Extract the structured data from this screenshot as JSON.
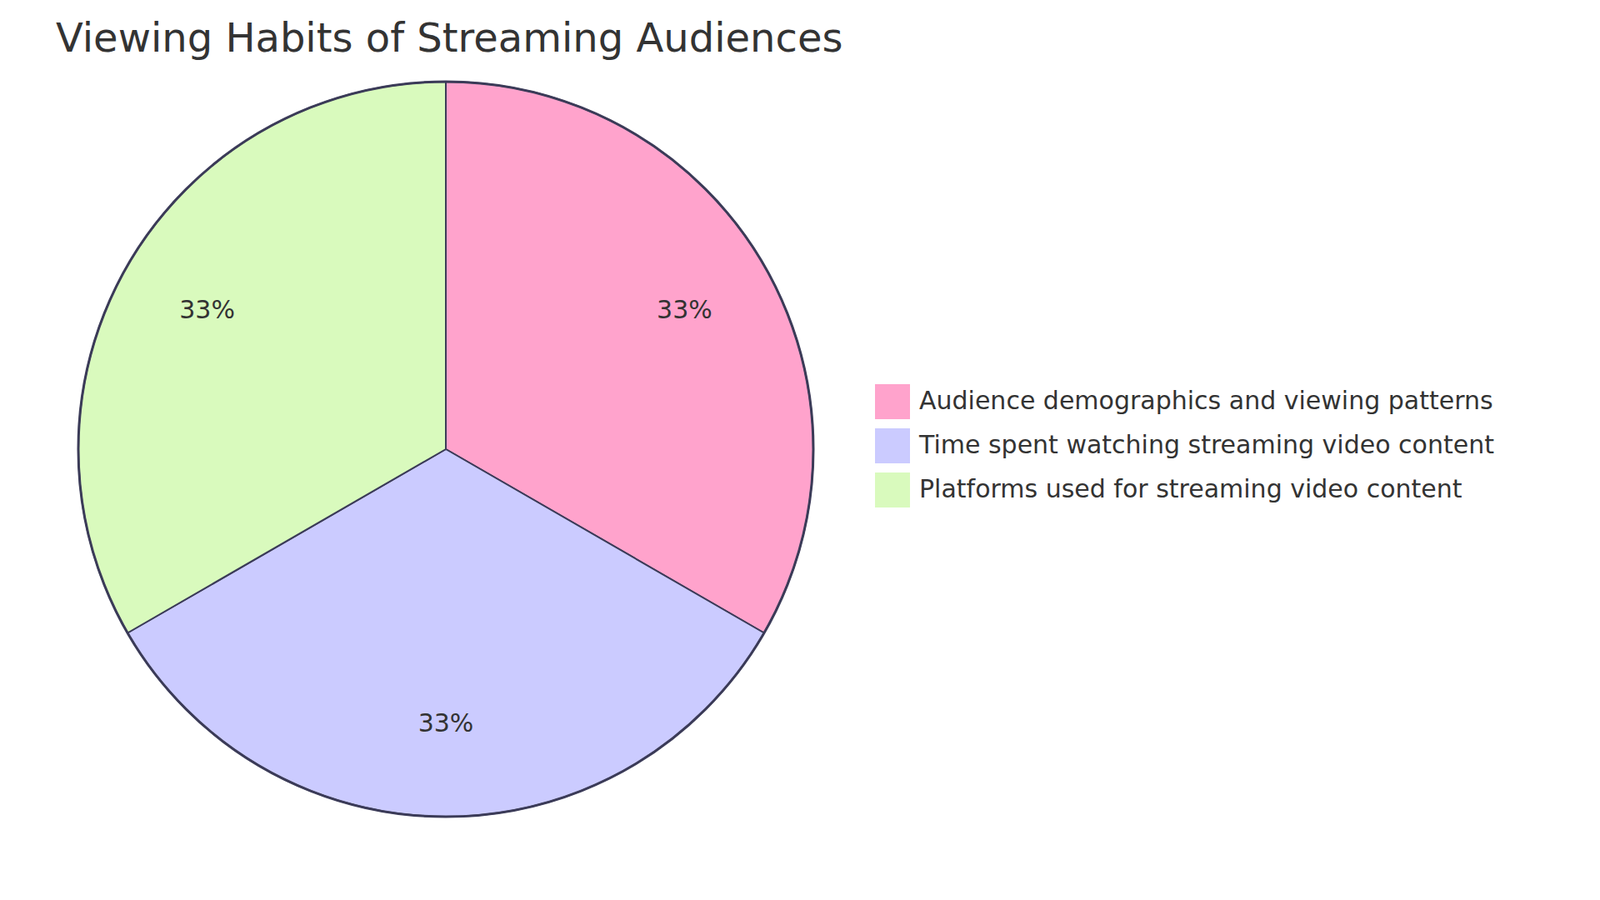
{
  "chart_data": {
    "type": "pie",
    "title": "Viewing Habits of Streaming Audiences",
    "categories": [
      "Audience demographics and viewing patterns",
      "Time spent watching streaming video content",
      "Platforms used for streaming video content"
    ],
    "values": [
      33,
      33,
      33
    ],
    "value_labels": [
      "33%",
      "33%",
      "33%"
    ],
    "colors": [
      "#ffa3cc",
      "#cbcbff",
      "#d9fabd"
    ],
    "data_labels": true,
    "legend": "right"
  }
}
